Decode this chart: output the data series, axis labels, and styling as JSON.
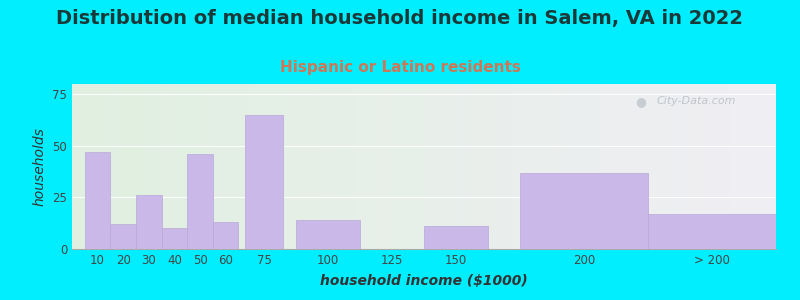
{
  "title": "Distribution of median household income in Salem, VA in 2022",
  "subtitle": "Hispanic or Latino residents",
  "xlabel": "household income ($1000)",
  "ylabel": "households",
  "bar_labels": [
    "10",
    "20",
    "30",
    "40",
    "50",
    "60",
    "75",
    "100",
    "125",
    "150",
    "200",
    "> 200"
  ],
  "bar_values": [
    47,
    12,
    26,
    10,
    46,
    13,
    65,
    14,
    0,
    11,
    37,
    17
  ],
  "bar_color": "#c9b8e8",
  "bar_edgecolor": "#b8a8d8",
  "background_outer": "#00eeff",
  "background_inner_left": "#e0f0e0",
  "background_inner_right": "#f0eef4",
  "yticks": [
    0,
    25,
    50,
    75
  ],
  "ylim": [
    0,
    80
  ],
  "title_fontsize": 14,
  "title_color": "#1a3a3a",
  "subtitle_fontsize": 11,
  "subtitle_color": "#cc7755",
  "axis_label_fontsize": 10,
  "tick_fontsize": 8.5,
  "watermark_text": "City-Data.com",
  "bar_positions": [
    10,
    20,
    30,
    40,
    50,
    60,
    75,
    100,
    125,
    150,
    200,
    250
  ],
  "bar_widths": [
    10,
    10,
    10,
    10,
    10,
    10,
    15,
    25,
    25,
    25,
    50,
    50
  ],
  "xlim": [
    0,
    275
  ]
}
